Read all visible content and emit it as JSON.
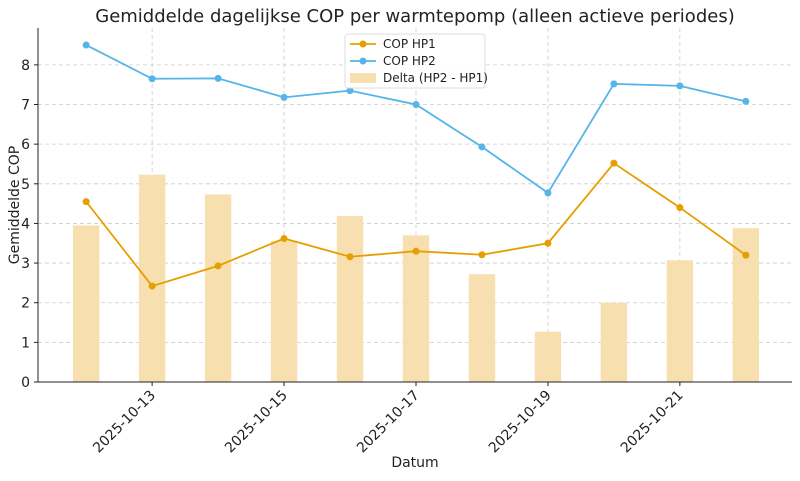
{
  "chart_data": {
    "type": "line",
    "title": "Gemiddelde dagelijkse COP per warmtepomp (alleen actieve periodes)",
    "xlabel": "Datum",
    "ylabel": "Gemiddelde COP",
    "x": [
      "2025-10-12",
      "2025-10-13",
      "2025-10-14",
      "2025-10-15",
      "2025-10-16",
      "2025-10-17",
      "2025-10-18",
      "2025-10-19",
      "2025-10-20",
      "2025-10-21",
      "2025-10-22"
    ],
    "xticks": [
      "2025-10-13",
      "2025-10-15",
      "2025-10-17",
      "2025-10-19",
      "2025-10-21"
    ],
    "yticks": [
      0,
      1,
      2,
      3,
      4,
      5,
      6,
      7,
      8
    ],
    "ylim": [
      0,
      8.93
    ],
    "grid": true,
    "legend_position": "top-center",
    "series": [
      {
        "name": "COP HP1",
        "type": "line",
        "color": "#E69F00",
        "values": [
          4.55,
          2.42,
          2.93,
          3.62,
          3.16,
          3.3,
          3.21,
          3.5,
          5.52,
          4.4,
          3.2
        ]
      },
      {
        "name": "COP HP2",
        "type": "line",
        "color": "#56B4E9",
        "values": [
          8.5,
          7.65,
          7.66,
          7.18,
          7.35,
          7.0,
          5.93,
          4.77,
          7.52,
          7.47,
          7.08
        ]
      },
      {
        "name": "Delta (HP2 - HP1)",
        "type": "bar",
        "color": "#F7DFB0",
        "values": [
          3.95,
          5.23,
          4.73,
          3.56,
          4.19,
          3.7,
          2.72,
          1.27,
          2.0,
          3.07,
          3.88
        ]
      }
    ]
  }
}
